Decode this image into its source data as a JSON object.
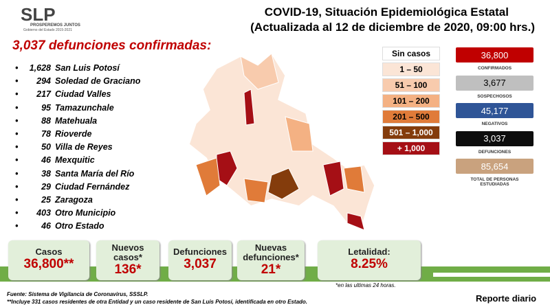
{
  "header": {
    "logo": "SLP",
    "logo_tagline": "PROSPEREMOS JUNTOS",
    "logo_subtitle": "Gobierno del Estado 2015-2021",
    "title": "COVID-19, Situación Epidemiológica Estatal",
    "subtitle": "(Actualizada al 12 de diciembre de 2020, 09:00 hrs.)"
  },
  "deaths": {
    "heading": "3,037 defunciones confirmadas:",
    "rows": [
      {
        "count": "1,628",
        "name": "San Luis Potosí"
      },
      {
        "count": "294",
        "name": "Soledad de Graciano"
      },
      {
        "count": "217",
        "name": "Ciudad Valles"
      },
      {
        "count": "95",
        "name": "Tamazunchale"
      },
      {
        "count": "88",
        "name": "Matehuala"
      },
      {
        "count": "78",
        "name": "Rioverde"
      },
      {
        "count": "50",
        "name": "Villa de Reyes"
      },
      {
        "count": "46",
        "name": "Mexquitic"
      },
      {
        "count": "38",
        "name": "Santa María del Río"
      },
      {
        "count": "29",
        "name": "Ciudad Fernández"
      },
      {
        "count": "25",
        "name": "Zaragoza"
      },
      {
        "count": "403",
        "name": "Otro Municipio"
      },
      {
        "count": "46",
        "name": "Otro Estado"
      }
    ]
  },
  "legend": [
    {
      "label": "Sin casos",
      "color": "#ffffff",
      "text_color": "#000000"
    },
    {
      "label": "1 – 50",
      "color": "#fbe5d6",
      "text_color": "#000000"
    },
    {
      "label": "51 – 100",
      "color": "#f8cbad",
      "text_color": "#000000"
    },
    {
      "label": "101 – 200",
      "color": "#f4b183",
      "text_color": "#000000"
    },
    {
      "label": "201 – 500",
      "color": "#e07b39",
      "text_color": "#000000"
    },
    {
      "label": "501 – 1,000",
      "color": "#843c0c",
      "text_color": "#ffffff"
    },
    {
      "label": "+ 1,000",
      "color": "#a50f15",
      "text_color": "#ffffff"
    }
  ],
  "stats": [
    {
      "value": "36,800",
      "label": "CONFIRMADOS",
      "color": "#c00000",
      "text_color": "#ffffff"
    },
    {
      "value": "3,677",
      "label": "SOSPECHOSOS",
      "color": "#bfbfbf",
      "text_color": "#000000"
    },
    {
      "value": "45,177",
      "label": "NEGATIVOS",
      "color": "#2f5597",
      "text_color": "#ffffff"
    },
    {
      "value": "3,037",
      "label": "DEFUNCIONES",
      "color": "#0d0d0d",
      "text_color": "#ffffff"
    },
    {
      "value": "85,654",
      "label": "TOTAL DE PERSONAS ESTUDIADAS",
      "color": "#c9a27e",
      "text_color": "#ffffff"
    }
  ],
  "summary": [
    {
      "label": "Casos",
      "value": "36,800**"
    },
    {
      "label": "Nuevos casos*",
      "value": "136*"
    },
    {
      "label": "Defunciones",
      "value": "3,037"
    },
    {
      "label": "Nuevas defunciones*",
      "value": "21*"
    },
    {
      "label": "Letalidad:",
      "value": "8.25%"
    }
  ],
  "footnotes": {
    "note_24h": "*en las ultimas 24 horas.",
    "source": "Fuente: Sistema de Vigilancia de Coronavirus, SSSLP.",
    "note_included": "**Incluye 331 casos residentes de otra Entidad y un caso residente de San Luis Potosí, identificada en otro Estado.",
    "report": "Reporte diario"
  }
}
